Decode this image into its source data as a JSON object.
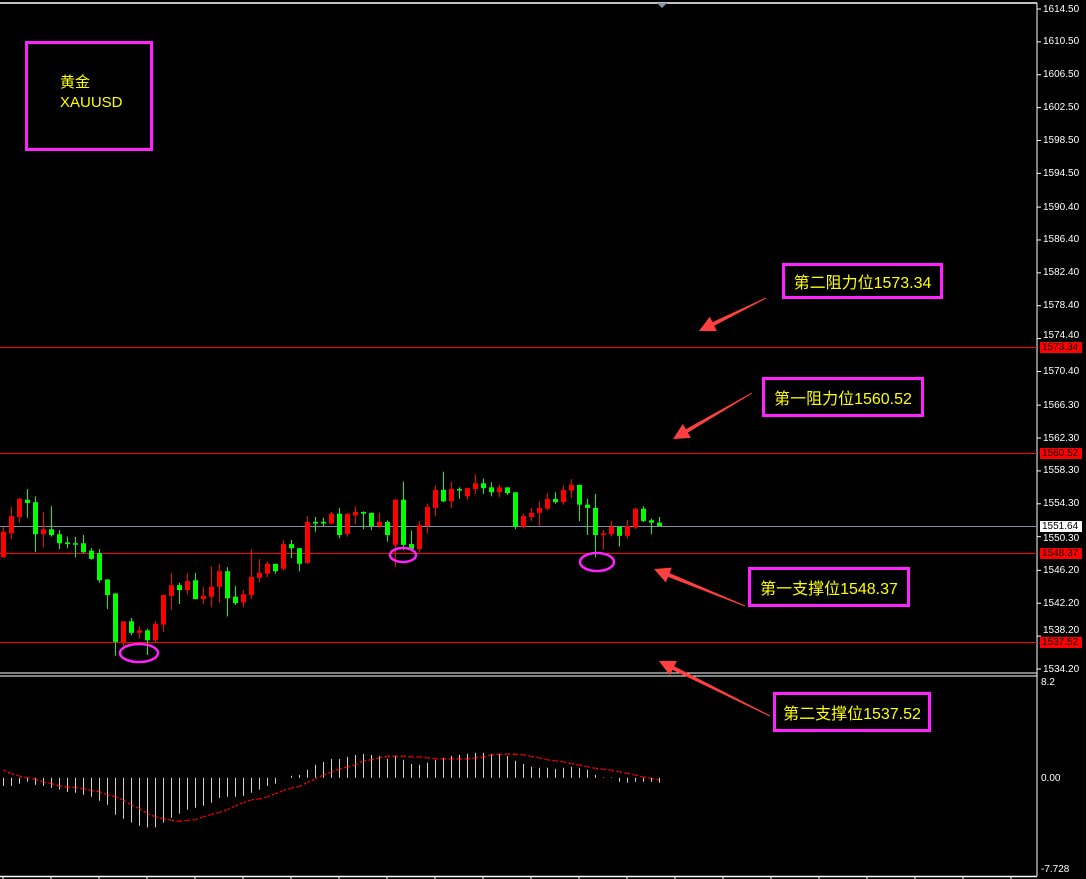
{
  "symbol_box": {
    "name_cn": "黄金",
    "ticker": "XAUUSD"
  },
  "annotations": [
    {
      "text": "第二阻力位1573.34",
      "level": 1573.34
    },
    {
      "text": "第一阻力位1560.52",
      "level": 1560.52
    },
    {
      "text": "第一支撑位1548.37",
      "level": 1548.37
    },
    {
      "text": "第二支撑位1537.52",
      "level": 1537.52
    }
  ],
  "colors": {
    "bull": "#ff0000",
    "bear": "#00ff00",
    "level_line": "#ff0000",
    "current_line": "#8090a0",
    "annotation_border": "#ff22ff",
    "annotation_text": "#ffff00",
    "arrow": "#ff4040",
    "histogram": "#d0d0d0",
    "signal": "#ff0000"
  },
  "chart_data": [
    {
      "type": "candlestick",
      "ylim": [
        1534.2,
        1614.5
      ],
      "y_ticks": [
        "1614.50",
        "1610.50",
        "1606.50",
        "1602.50",
        "1598.50",
        "1594.50",
        "1590.40",
        "1586.40",
        "1582.40",
        "1578.40",
        "1574.40",
        "1570.40",
        "1566.30",
        "1562.30",
        "1558.30",
        "1554.30",
        "1550.30",
        "1546.20",
        "1542.20",
        "1538.20",
        "1534.20"
      ],
      "current_price": "1551.64",
      "horizontal_levels": [
        "1573.34",
        "1560.52",
        "1548.37",
        "1537.52"
      ],
      "ohlc": [
        [
          1547.8,
          1551.5,
          1547.7,
          1550.9
        ],
        [
          1550.7,
          1553.9,
          1550.0,
          1552.8
        ],
        [
          1552.7,
          1555.0,
          1552.0,
          1554.9
        ],
        [
          1554.8,
          1556.1,
          1552.6,
          1554.4
        ],
        [
          1554.5,
          1555.2,
          1548.4,
          1550.6
        ],
        [
          1550.6,
          1553.3,
          1549.0,
          1551.2
        ],
        [
          1551.2,
          1554.0,
          1550.3,
          1550.5
        ],
        [
          1550.6,
          1551.1,
          1548.8,
          1549.5
        ],
        [
          1549.6,
          1550.3,
          1548.9,
          1549.4
        ],
        [
          1549.5,
          1550.3,
          1547.8,
          1549.4
        ],
        [
          1549.5,
          1550.5,
          1548.3,
          1548.4
        ],
        [
          1548.6,
          1548.9,
          1547.5,
          1547.6
        ],
        [
          1548.3,
          1548.8,
          1544.7,
          1545.0
        ],
        [
          1545.1,
          1545.1,
          1541.5,
          1543.2
        ],
        [
          1543.4,
          1543.4,
          1535.8,
          1537.5
        ],
        [
          1537.4,
          1540.0,
          1537.0,
          1540.0
        ],
        [
          1540.0,
          1540.4,
          1538.3,
          1538.6
        ],
        [
          1538.6,
          1539.4,
          1537.9,
          1538.9
        ],
        [
          1538.9,
          1539.1,
          1535.9,
          1537.7
        ],
        [
          1537.7,
          1540.0,
          1537.4,
          1539.7
        ],
        [
          1539.6,
          1543.2,
          1538.7,
          1543.2
        ],
        [
          1543.1,
          1545.9,
          1541.4,
          1544.4
        ],
        [
          1544.4,
          1544.7,
          1542.1,
          1543.8
        ],
        [
          1543.8,
          1545.8,
          1543.3,
          1544.9
        ],
        [
          1545.0,
          1545.9,
          1542.7,
          1542.7
        ],
        [
          1542.7,
          1544.2,
          1542.1,
          1543.1
        ],
        [
          1543.0,
          1546.7,
          1541.7,
          1544.2
        ],
        [
          1544.2,
          1547.0,
          1542.3,
          1546.1
        ],
        [
          1546.1,
          1546.6,
          1540.6,
          1542.8
        ],
        [
          1543.0,
          1544.3,
          1542.0,
          1542.2
        ],
        [
          1542.3,
          1543.8,
          1541.7,
          1543.3
        ],
        [
          1543.2,
          1548.8,
          1542.7,
          1545.4
        ],
        [
          1545.3,
          1547.6,
          1544.8,
          1545.9
        ],
        [
          1545.8,
          1547.3,
          1545.4,
          1547.0
        ],
        [
          1547.0,
          1547.0,
          1545.8,
          1546.1
        ],
        [
          1546.4,
          1549.9,
          1546.2,
          1549.4
        ],
        [
          1549.4,
          1549.9,
          1547.7,
          1548.9
        ],
        [
          1548.9,
          1548.9,
          1546.1,
          1547.0
        ],
        [
          1547.1,
          1552.8,
          1547.0,
          1552.1
        ],
        [
          1552.1,
          1552.7,
          1550.9,
          1551.9
        ],
        [
          1552.1,
          1552.6,
          1551.5,
          1551.9
        ],
        [
          1551.9,
          1553.3,
          1551.8,
          1553.1
        ],
        [
          1553.1,
          1553.8,
          1550.1,
          1550.5
        ],
        [
          1550.6,
          1553.1,
          1550.3,
          1553.1
        ],
        [
          1552.9,
          1554.0,
          1551.8,
          1553.3
        ],
        [
          1553.3,
          1553.4,
          1551.2,
          1553.1
        ],
        [
          1553.2,
          1553.2,
          1551.1,
          1551.6
        ],
        [
          1551.6,
          1553.2,
          1551.3,
          1552.1
        ],
        [
          1552.1,
          1552.3,
          1549.7,
          1550.5
        ],
        [
          1549.3,
          1554.9,
          1546.6,
          1554.8
        ],
        [
          1554.8,
          1557.0,
          1548.7,
          1549.3
        ],
        [
          1549.4,
          1551.0,
          1548.5,
          1548.8
        ],
        [
          1548.8,
          1552.2,
          1548.4,
          1551.7
        ],
        [
          1551.6,
          1554.3,
          1550.7,
          1553.9
        ],
        [
          1553.8,
          1556.5,
          1552.8,
          1556.0
        ],
        [
          1556.0,
          1558.2,
          1554.5,
          1554.6
        ],
        [
          1554.6,
          1557.0,
          1553.8,
          1556.1
        ],
        [
          1556.1,
          1556.3,
          1554.9,
          1556.0
        ],
        [
          1555.2,
          1556.2,
          1554.8,
          1556.2
        ],
        [
          1556.1,
          1557.9,
          1555.5,
          1556.8
        ],
        [
          1556.8,
          1557.4,
          1555.5,
          1556.2
        ],
        [
          1556.3,
          1556.9,
          1555.2,
          1555.7
        ],
        [
          1555.7,
          1556.6,
          1555.1,
          1556.3
        ],
        [
          1556.3,
          1556.3,
          1555.4,
          1555.6
        ],
        [
          1555.7,
          1555.7,
          1551.2,
          1551.5
        ],
        [
          1551.5,
          1553.1,
          1551.3,
          1552.8
        ],
        [
          1552.7,
          1553.8,
          1552.2,
          1553.2
        ],
        [
          1553.2,
          1554.6,
          1551.6,
          1553.8
        ],
        [
          1553.7,
          1555.6,
          1553.5,
          1554.9
        ],
        [
          1554.9,
          1555.7,
          1554.3,
          1554.5
        ],
        [
          1554.5,
          1556.5,
          1554.2,
          1556.0
        ],
        [
          1555.9,
          1557.3,
          1555.0,
          1556.6
        ],
        [
          1556.6,
          1556.6,
          1552.2,
          1554.2
        ],
        [
          1554.2,
          1554.9,
          1550.5,
          1553.8
        ],
        [
          1553.8,
          1555.5,
          1547.8,
          1550.5
        ],
        [
          1550.5,
          1551.1,
          1548.7,
          1550.7
        ],
        [
          1550.6,
          1552.2,
          1550.3,
          1551.5
        ],
        [
          1551.5,
          1551.5,
          1549.1,
          1550.4
        ],
        [
          1550.4,
          1552.3,
          1550.1,
          1551.6
        ],
        [
          1551.4,
          1553.8,
          1551.2,
          1553.7
        ],
        [
          1553.7,
          1554.0,
          1552.1,
          1552.2
        ],
        [
          1552.3,
          1552.5,
          1550.6,
          1552.0
        ],
        [
          1552.0,
          1552.7,
          1551.6,
          1551.6
        ]
      ]
    },
    {
      "type": "bar+line",
      "ylim": [
        -7.728,
        8.2
      ],
      "y_ticks": [
        "8.2",
        "0.00",
        "-7.728"
      ],
      "histogram": [
        -0.68,
        -0.68,
        -0.5,
        -0.34,
        -0.6,
        -0.68,
        -0.85,
        -1.0,
        -1.2,
        -1.27,
        -1.44,
        -1.6,
        -1.94,
        -2.28,
        -3.13,
        -3.47,
        -3.8,
        -4.06,
        -4.2,
        -4.2,
        -3.8,
        -3.38,
        -3.04,
        -2.7,
        -2.54,
        -2.37,
        -2.1,
        -1.7,
        -1.6,
        -1.6,
        -1.52,
        -1.27,
        -1.0,
        -0.68,
        -0.5,
        0,
        0.17,
        0.25,
        0.68,
        1.1,
        1.35,
        1.6,
        1.6,
        1.77,
        1.94,
        2.03,
        1.94,
        1.86,
        1.6,
        1.86,
        1.52,
        1.18,
        1.1,
        1.27,
        1.52,
        1.69,
        1.86,
        1.94,
        2.03,
        2.11,
        2.11,
        2.03,
        2.03,
        1.86,
        1.44,
        1.18,
        0.93,
        0.85,
        0.85,
        0.76,
        0.85,
        0.93,
        0.85,
        0.68,
        0.25,
        0.05,
        0.05,
        -0.34,
        -0.42,
        -0.34,
        -0.34,
        -0.34,
        -0.42
      ],
      "signal": [
        0.65,
        0.34,
        0.14,
        0,
        -0.14,
        -0.37,
        -0.5,
        -0.68,
        -0.8,
        -0.82,
        -0.93,
        -1.07,
        -1.18,
        -1.44,
        -1.6,
        -1.9,
        -2.3,
        -2.6,
        -3.04,
        -3.3,
        -3.47,
        -3.6,
        -3.7,
        -3.6,
        -3.55,
        -3.3,
        -3.1,
        -2.93,
        -2.7,
        -2.37,
        -2.1,
        -1.87,
        -1.8,
        -1.6,
        -1.35,
        -1.07,
        -0.87,
        -0.73,
        -0.4,
        -0.1,
        0.25,
        0.5,
        0.73,
        0.93,
        1.1,
        1.44,
        1.52,
        1.69,
        1.83,
        1.83,
        1.83,
        1.77,
        1.77,
        1.69,
        1.6,
        1.6,
        1.6,
        1.6,
        1.6,
        1.69,
        1.77,
        1.94,
        2.0,
        2.0,
        2.0,
        1.94,
        1.8,
        1.69,
        1.52,
        1.44,
        1.35,
        1.2,
        1.07,
        0.93,
        0.8,
        0.73,
        0.64,
        0.5,
        0.37,
        0.22,
        0.08,
        -0.05,
        -0.2
      ]
    }
  ]
}
